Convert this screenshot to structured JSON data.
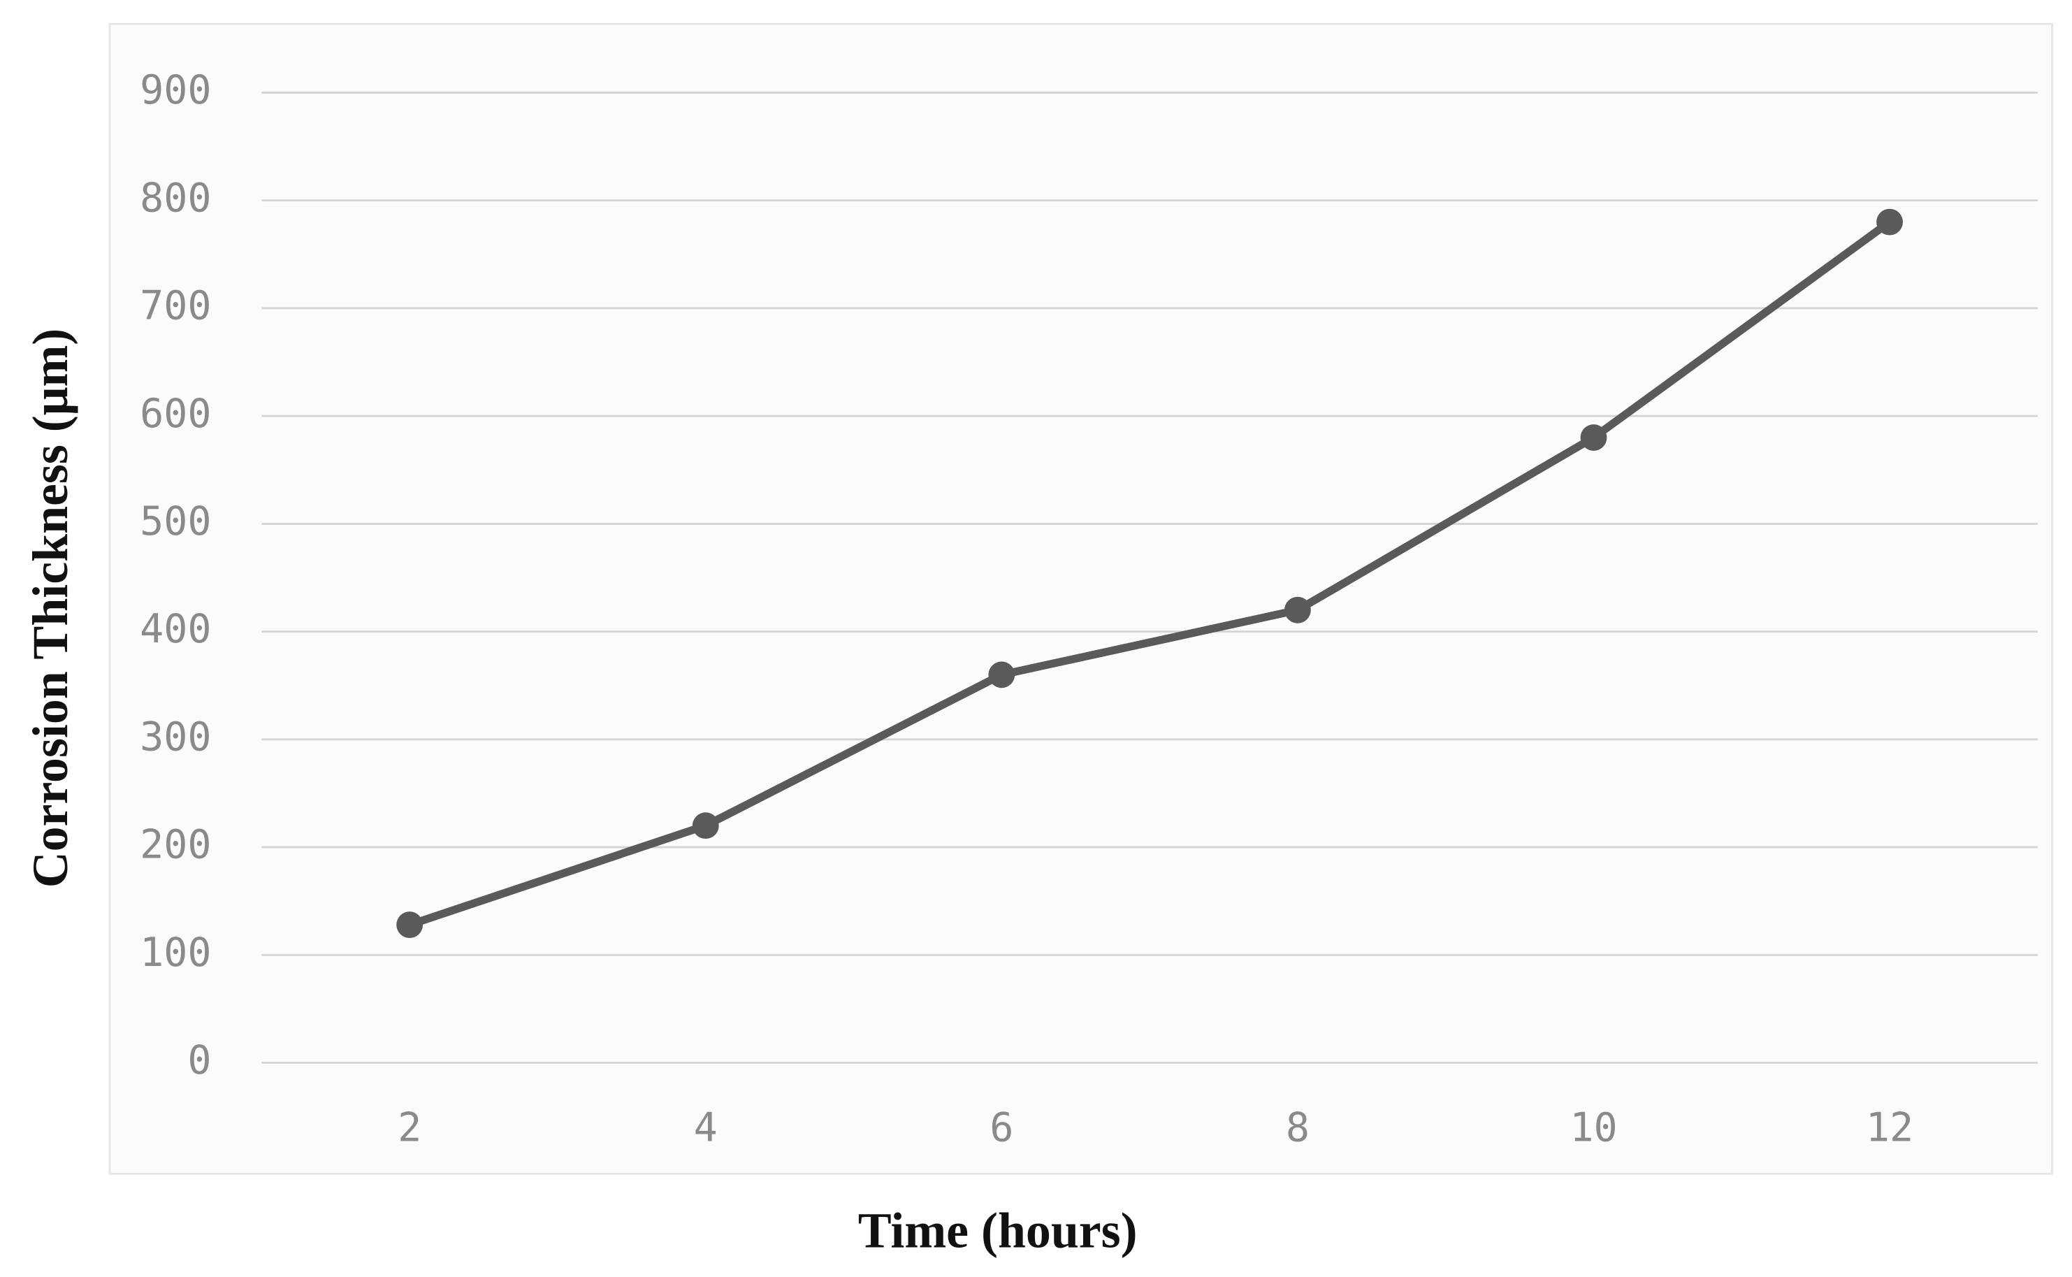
{
  "chart_data": {
    "type": "line",
    "x_label": "Time (hours)",
    "y_label": "Corrosion Thickness (μm)",
    "categories": [
      "2",
      "4",
      "6",
      "8",
      "10",
      "12"
    ],
    "values": [
      128,
      220,
      360,
      420,
      580,
      780
    ],
    "color": "#5a5a5a",
    "ylim": [
      0,
      900
    ],
    "yticks": [
      0,
      100,
      200,
      300,
      400,
      500,
      600,
      700,
      800,
      900
    ],
    "grid": true
  }
}
